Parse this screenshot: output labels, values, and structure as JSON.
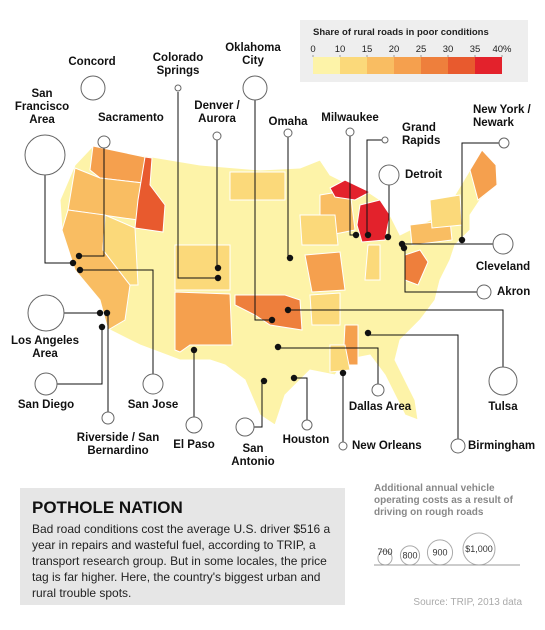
{
  "legend": {
    "title": "Share of rural roads in poor conditions",
    "ticks": [
      0,
      10,
      15,
      20,
      25,
      30,
      35,
      {
        "value": 40,
        "label": "40%"
      }
    ]
  },
  "cities": [
    "Concord",
    "Colorado Springs",
    "Oklahoma City",
    "San Francisco Area",
    "Sacramento",
    "Denver / Aurora",
    "Omaha",
    "Milwaukee",
    "Grand Rapids",
    "New York / Newark",
    "Detroit",
    "Cleveland",
    "Akron",
    "Los Angeles Area",
    "San Diego",
    "San Jose",
    "Riverside / San Bernardino",
    "El Paso",
    "San Antonio",
    "Houston",
    "New Orleans",
    "Dallas Area",
    "Birmingham",
    "Tulsa"
  ],
  "story": {
    "title": "POTHOLE NATION",
    "body": "Bad road conditions cost the average U.S. driver $516 a year in repairs and wasteful fuel, according to TRIP, a transport research group. But in some locales, the price tag is far higher. Here, the country's biggest urban and rural trouble spots."
  },
  "size_legend": {
    "title": "Additional annual vehicle operating costs as a result of driving on rough roads",
    "sizes": [
      700,
      800,
      900,
      {
        "value": 1000,
        "label": "$1,000"
      }
    ]
  },
  "source": "Source: TRIP, 2013 data"
}
